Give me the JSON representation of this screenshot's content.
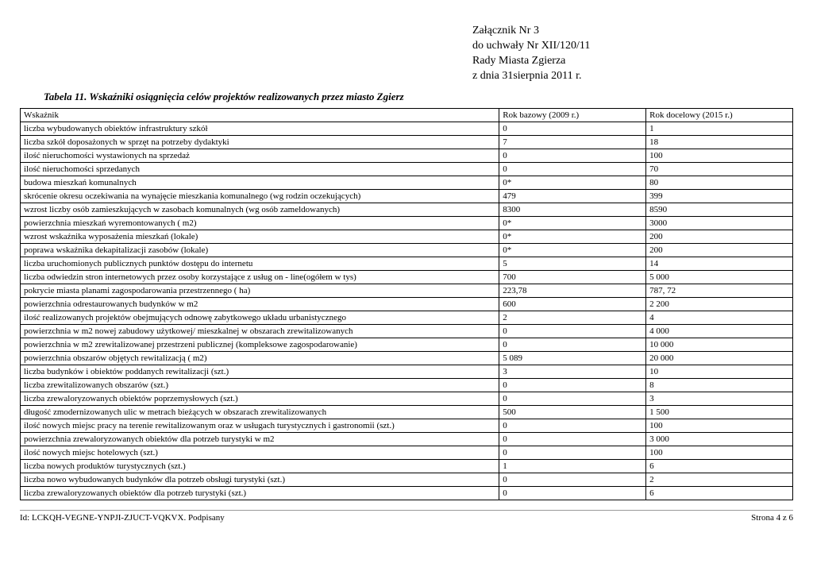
{
  "header": {
    "line1": "Załącznik Nr 3",
    "line2": "do uchwały Nr XII/120/11",
    "line3": "Rady Miasta Zgierza",
    "line4": "z dnia 31sierpnia 2011 r."
  },
  "caption": "Tabela 11. Wskaźniki osiągnięcia celów projektów realizowanych przez miasto Zgierz",
  "columns": [
    "Wskaźnik",
    "Rok bazowy (2009 r.)",
    "Rok docelowy (2015 r.)"
  ],
  "rows": [
    [
      "liczba wybudowanych obiektów infrastruktury szkół",
      "0",
      "1"
    ],
    [
      "liczba szkół doposażonych w sprzęt na potrzeby dydaktyki",
      "7",
      "18"
    ],
    [
      "ilość nieruchomości wystawionych na sprzedaż",
      "0",
      "100"
    ],
    [
      "ilość nieruchomości sprzedanych",
      "0",
      "70"
    ],
    [
      "budowa mieszkań komunalnych",
      "0*",
      "80"
    ],
    [
      "skrócenie okresu oczekiwania na wynajęcie mieszkania komunalnego (wg rodzin oczekujących)",
      "479",
      "399"
    ],
    [
      "wzrost liczby osób zamieszkujących w zasobach komunalnych (wg osób zameldowanych)",
      "8300",
      "8590"
    ],
    [
      "powierzchnia mieszkań wyremontowanych ( m2)",
      "0*",
      "3000"
    ],
    [
      "wzrost wskaźnika wyposażenia mieszkań (lokale)",
      "0*",
      "200"
    ],
    [
      "poprawa wskaźnika dekapitalizacji zasobów (lokale)",
      "0*",
      "200"
    ],
    [
      "liczba uruchomionych publicznych punktów dostępu do internetu",
      "5",
      "14"
    ],
    [
      "liczba odwiedzin stron internetowych przez osoby korzystające z usług on - line(ogółem w tys)",
      "700",
      "5 000"
    ],
    [
      "pokrycie miasta planami zagospodarowania przestrzennego ( ha)",
      "223,78",
      "787, 72"
    ],
    [
      "powierzchnia odrestaurowanych budynków w m2",
      "600",
      "2 200"
    ],
    [
      "ilość realizowanych projektów obejmujących odnowę zabytkowego układu urbanistycznego",
      "2",
      "4"
    ],
    [
      "powierzchnia w m2 nowej zabudowy użytkowej/ mieszkalnej w obszarach zrewitalizowanych",
      "0",
      "4 000"
    ],
    [
      "powierzchnia w m2 zrewitalizowanej przestrzeni publicznej (kompleksowe zagospodarowanie)",
      "0",
      "10 000"
    ],
    [
      "powierzchnia obszarów objętych rewitalizacją ( m2)",
      "5 089",
      "20 000"
    ],
    [
      "liczba budynków i obiektów poddanych rewitalizacji (szt.)",
      "3",
      "10"
    ],
    [
      "liczba zrewitalizowanych obszarów (szt.)",
      "0",
      "8"
    ],
    [
      "liczba zrewaloryzowanych obiektów poprzemysłowych (szt.)",
      "0",
      "3"
    ],
    [
      "długość zmodernizowanych ulic w metrach bieżących w obszarach zrewitalizowanych",
      "500",
      "1 500"
    ],
    [
      "ilość nowych miejsc pracy na terenie rewitalizowanym oraz w usługach turystycznych i gastronomii (szt.)",
      "0",
      "100"
    ],
    [
      "powierzchnia zrewaloryzowanych obiektów dla potrzeb turystyki w m2",
      "0",
      "3 000"
    ],
    [
      "ilość nowych miejsc hotelowych (szt.)",
      "0",
      "100"
    ],
    [
      "liczba nowych produktów turystycznych (szt.)",
      "1",
      "6"
    ],
    [
      "liczba nowo wybudowanych budynków dla potrzeb obsługi turystyki (szt.)",
      "0",
      "2"
    ],
    [
      "liczba zrewaloryzowanych obiektów dla potrzeb turystyki (szt.)",
      "0",
      "6"
    ]
  ],
  "footer": {
    "left": "Id: LCKQH-VEGNE-YNPJI-ZJUCT-VQKVX. Podpisany",
    "right": "Strona 4 z 6"
  }
}
